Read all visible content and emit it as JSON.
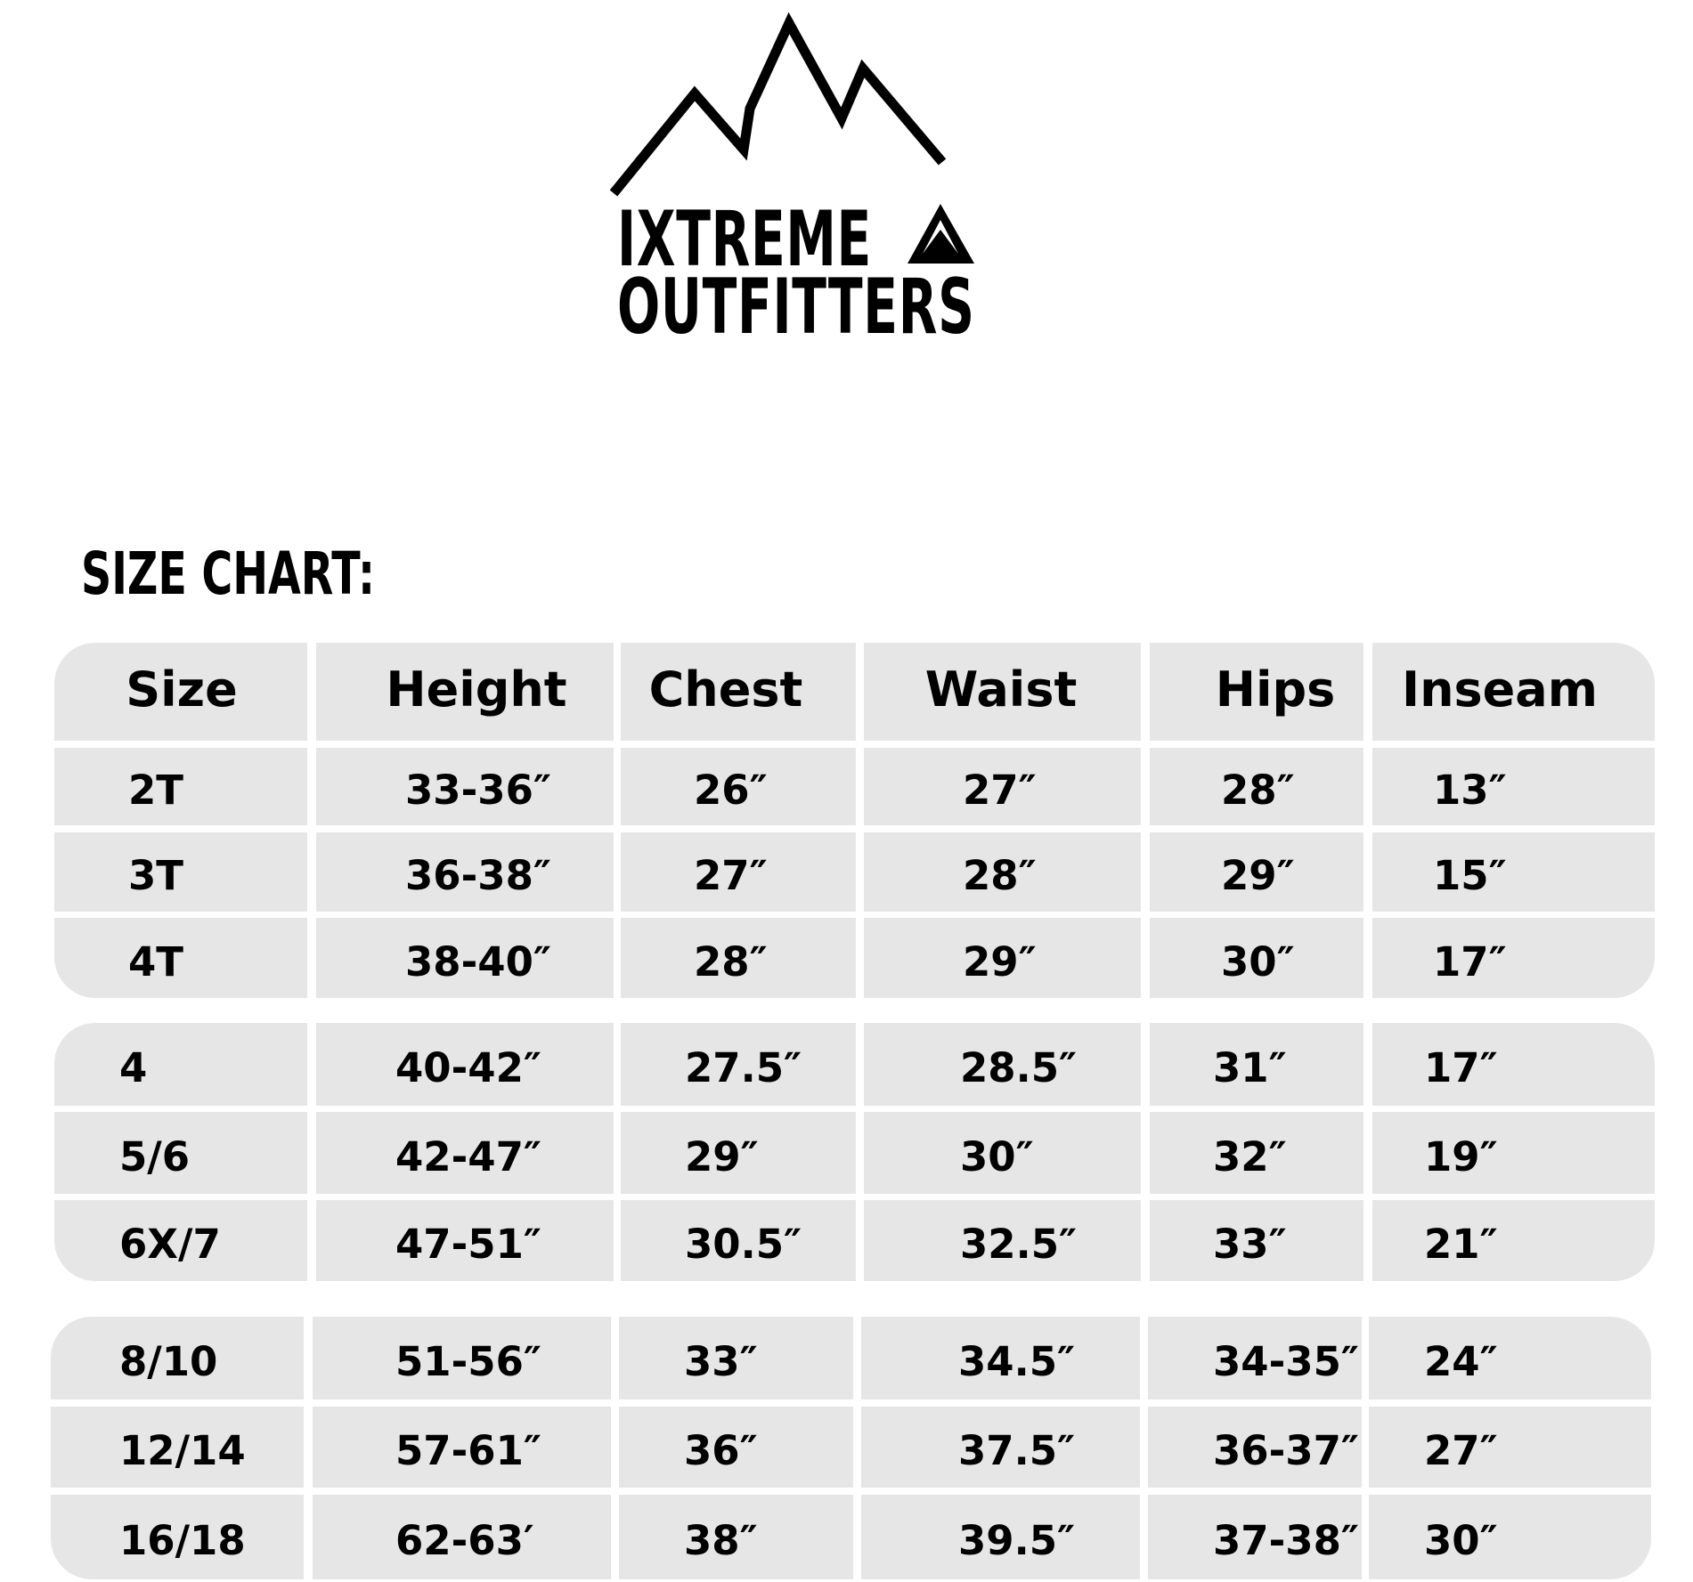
{
  "logo": {
    "line1": "IXTREME",
    "line2": "OUTFITTERS",
    "icons": [
      "mountain-range-icon",
      "triangle-mountain-icon"
    ]
  },
  "title": "SIZE CHART:",
  "table": {
    "headers": [
      "Size",
      "Height",
      "Chest",
      "Waist",
      "Hips",
      "Inseam"
    ],
    "groups": [
      [
        [
          "2T",
          "33-36″",
          "26″",
          "27″",
          "28″",
          "13″"
        ],
        [
          "3T",
          "36-38″",
          "27″",
          "28″",
          "29″",
          "15″"
        ],
        [
          "4T",
          "38-40″",
          "28″",
          "29″",
          "30″",
          "17″"
        ]
      ],
      [
        [
          "4",
          "40-42″",
          "27.5″",
          "28.5″",
          "31″",
          "17″"
        ],
        [
          "5/6",
          "42-47″",
          "29″",
          "30″",
          "32″",
          "19″"
        ],
        [
          "6X/7",
          "47-51″",
          "30.5″",
          "32.5″",
          "33″",
          "21″"
        ]
      ],
      [
        [
          "8/10",
          "51-56″",
          "33″",
          "34.5″",
          "34-35″",
          "24″"
        ],
        [
          "12/14",
          "57-61″",
          "36″",
          "37.5″",
          "36-37″",
          "27″"
        ],
        [
          "16/18",
          "62-63′",
          "38″",
          "39.5″",
          "37-38″",
          "30″"
        ]
      ]
    ]
  },
  "colors": {
    "cell_bg": "#e6e6e6",
    "text": "#000000"
  }
}
